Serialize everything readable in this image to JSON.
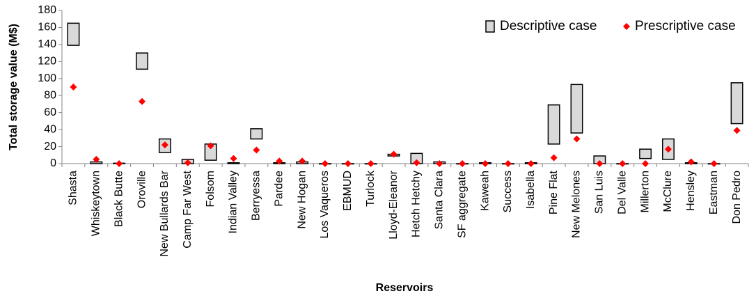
{
  "chart_data": {
    "type": "floating_bar",
    "y_label": "Total storage value (M$)",
    "x_label": "Reservoirs",
    "categories": [
      "Shasta",
      "Whiskeytown",
      "Black Butte",
      "Oroville",
      "New Bullards Bar",
      "Camp Far West",
      "Folsom",
      "Indian Valley",
      "Berryessa",
      "Pardee",
      "New Hogan",
      "Los Vaqueros",
      "EBMUD",
      "Turlock",
      "Lloyd-Eleanor",
      "Hetch Hetchy",
      "Santa Clara",
      "SF aggregate",
      "Kaweah",
      "Success",
      "Isabella",
      "Pine Flat",
      "New Melones",
      "San Luis",
      "Del Valle",
      "Millerton",
      "McClure",
      "Hensley",
      "Eastman",
      "Don Pedro"
    ],
    "series": [
      {
        "name": "Descriptive case",
        "color": "#d9d9d9",
        "values": [
          [
            139,
            165
          ],
          [
            0,
            2
          ],
          [
            0,
            0.5
          ],
          [
            111,
            130
          ],
          [
            13,
            29
          ],
          [
            0,
            5
          ],
          [
            4,
            23
          ],
          [
            0,
            1
          ],
          [
            29,
            41
          ],
          [
            0,
            1
          ],
          [
            0,
            2
          ],
          [
            0,
            0
          ],
          [
            0,
            0
          ],
          [
            0,
            0
          ],
          [
            9,
            11
          ],
          [
            0,
            12
          ],
          [
            0,
            2
          ],
          [
            0,
            0
          ],
          [
            0,
            1
          ],
          [
            0,
            0
          ],
          [
            0,
            1
          ],
          [
            23,
            69
          ],
          [
            36,
            93
          ],
          [
            0,
            9
          ],
          [
            0,
            0
          ],
          [
            6,
            17
          ],
          [
            5,
            29
          ],
          [
            0,
            1
          ],
          [
            0,
            0
          ],
          [
            47,
            95
          ]
        ]
      },
      {
        "name": "Prescriptive case",
        "color": "#ff0000",
        "values": [
          90,
          5,
          0,
          73,
          22,
          1,
          21,
          6,
          16,
          3,
          3,
          0,
          0,
          0,
          11,
          1,
          0,
          0,
          0,
          0,
          0,
          7,
          29,
          0,
          0,
          0,
          17,
          2,
          0,
          39
        ]
      }
    ],
    "ylim": [
      0,
      180
    ],
    "yticks": [
      0,
      20,
      40,
      60,
      80,
      100,
      120,
      140,
      160,
      180
    ],
    "legend": "top-right"
  }
}
